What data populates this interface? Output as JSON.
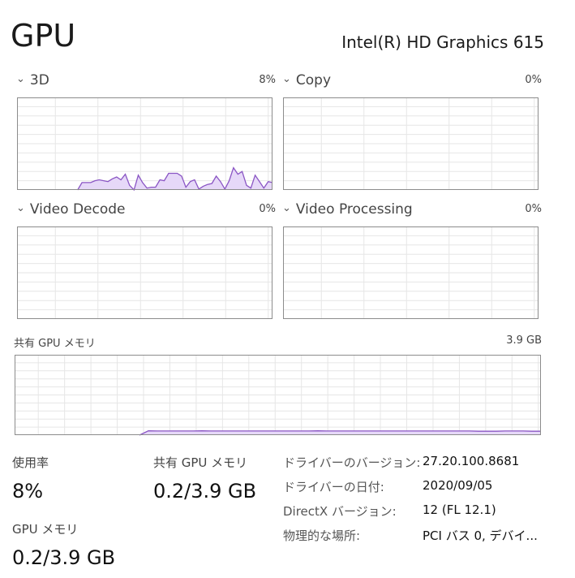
{
  "header": {
    "title": "GPU",
    "adapter_name": "Intel(R) HD Graphics 615"
  },
  "colors": {
    "fill": "#e6d8f8",
    "line": "#8a55c4",
    "border": "#8c8c8c",
    "grid": "#e6e6e6"
  },
  "graphs": [
    {
      "label": "3D",
      "value": "8%",
      "max": 100,
      "values": [
        0,
        0,
        0,
        0,
        0,
        0,
        0,
        0,
        0,
        0,
        0,
        0,
        0,
        0,
        0,
        8,
        8,
        8,
        10,
        11,
        10,
        9,
        12,
        14,
        11,
        17,
        5,
        0,
        16,
        8,
        2,
        3,
        3,
        11,
        10,
        18,
        18,
        18,
        15,
        3,
        9,
        11,
        1,
        4,
        6,
        7,
        15,
        9,
        1,
        10,
        24,
        17,
        20,
        5,
        2,
        16,
        9,
        2,
        9,
        8
      ]
    },
    {
      "label": "Copy",
      "value": "0%",
      "max": 100,
      "values": []
    },
    {
      "label": "Video Decode",
      "value": "0%",
      "max": 100,
      "values": []
    },
    {
      "label": "Video Processing",
      "value": "0%",
      "max": 100,
      "values": []
    }
  ],
  "shared_memory_graph": {
    "label": "共有 GPU メモリ",
    "value": "3.9 GB",
    "max": 3.9,
    "values": [
      0,
      0,
      0,
      0,
      0,
      0,
      0,
      0,
      0,
      0,
      0,
      0,
      0,
      0,
      0,
      0.21,
      0.2,
      0.2,
      0.2,
      0.2,
      0.2,
      0.21,
      0.2,
      0.2,
      0.2,
      0.2,
      0.2,
      0.2,
      0.2,
      0.2,
      0.2,
      0.2,
      0.2,
      0.2,
      0.21,
      0.2,
      0.2,
      0.2,
      0.2,
      0.2,
      0.2,
      0.2,
      0.2,
      0.2,
      0.2,
      0.2,
      0.2,
      0.2,
      0.2,
      0.2,
      0.2,
      0.2,
      0.19,
      0.19,
      0.19,
      0.2,
      0.2,
      0.2,
      0.19,
      0.19
    ]
  },
  "stats": {
    "utilization": {
      "label": "使用率",
      "value": "8%"
    },
    "shared_memory": {
      "label": "共有 GPU メモリ",
      "value": "0.2/3.9 GB"
    },
    "gpu_memory": {
      "label": "GPU メモリ",
      "value": "0.2/3.9 GB"
    }
  },
  "info": [
    {
      "label": "ドライバーのバージョン:",
      "value": "27.20.100.8681"
    },
    {
      "label": "ドライバーの日付:",
      "value": "2020/09/05"
    },
    {
      "label": "DirectX バージョン:",
      "value": "12 (FL 12.1)"
    },
    {
      "label": "物理的な場所:",
      "value": "PCI バス 0, デバイ..."
    }
  ]
}
